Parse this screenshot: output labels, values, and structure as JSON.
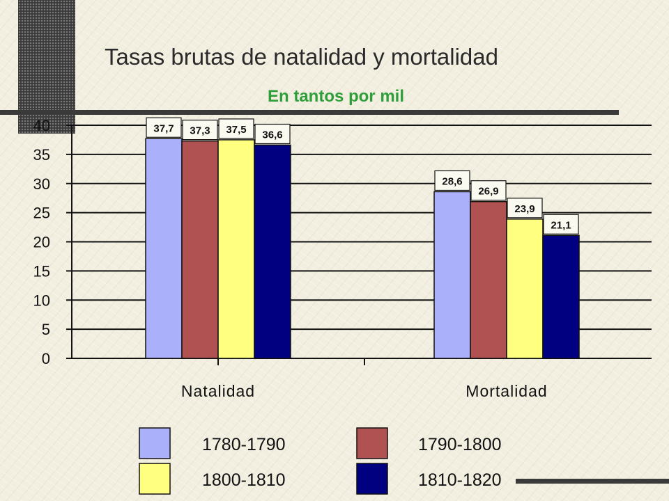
{
  "chart_data": {
    "type": "bar",
    "title": "Tasas brutas de natalidad y mortalidad",
    "subtitle": "En tantos por mil",
    "categories": [
      "Natalidad",
      "Mortalidad"
    ],
    "series": [
      {
        "name": "1780-1790",
        "color": "#aab0fa",
        "values": [
          37.7,
          28.6
        ],
        "labels": [
          "37,7",
          "28,6"
        ]
      },
      {
        "name": "1790-1800",
        "color": "#b05252",
        "values": [
          37.3,
          26.9
        ],
        "labels": [
          "37,3",
          "26,9"
        ]
      },
      {
        "name": "1800-1810",
        "color": "#ffff80",
        "values": [
          37.5,
          23.9
        ],
        "labels": [
          "37,5",
          "23,9"
        ]
      },
      {
        "name": "1810-1820",
        "color": "#000080",
        "values": [
          36.6,
          21.1
        ],
        "labels": [
          "36,6",
          "21,1"
        ]
      }
    ],
    "yticks": [
      "0",
      "5",
      "10",
      "15",
      "20",
      "25",
      "30",
      "35",
      "40"
    ],
    "ylim": [
      0,
      40
    ],
    "grid": true,
    "legend_position": "bottom"
  }
}
